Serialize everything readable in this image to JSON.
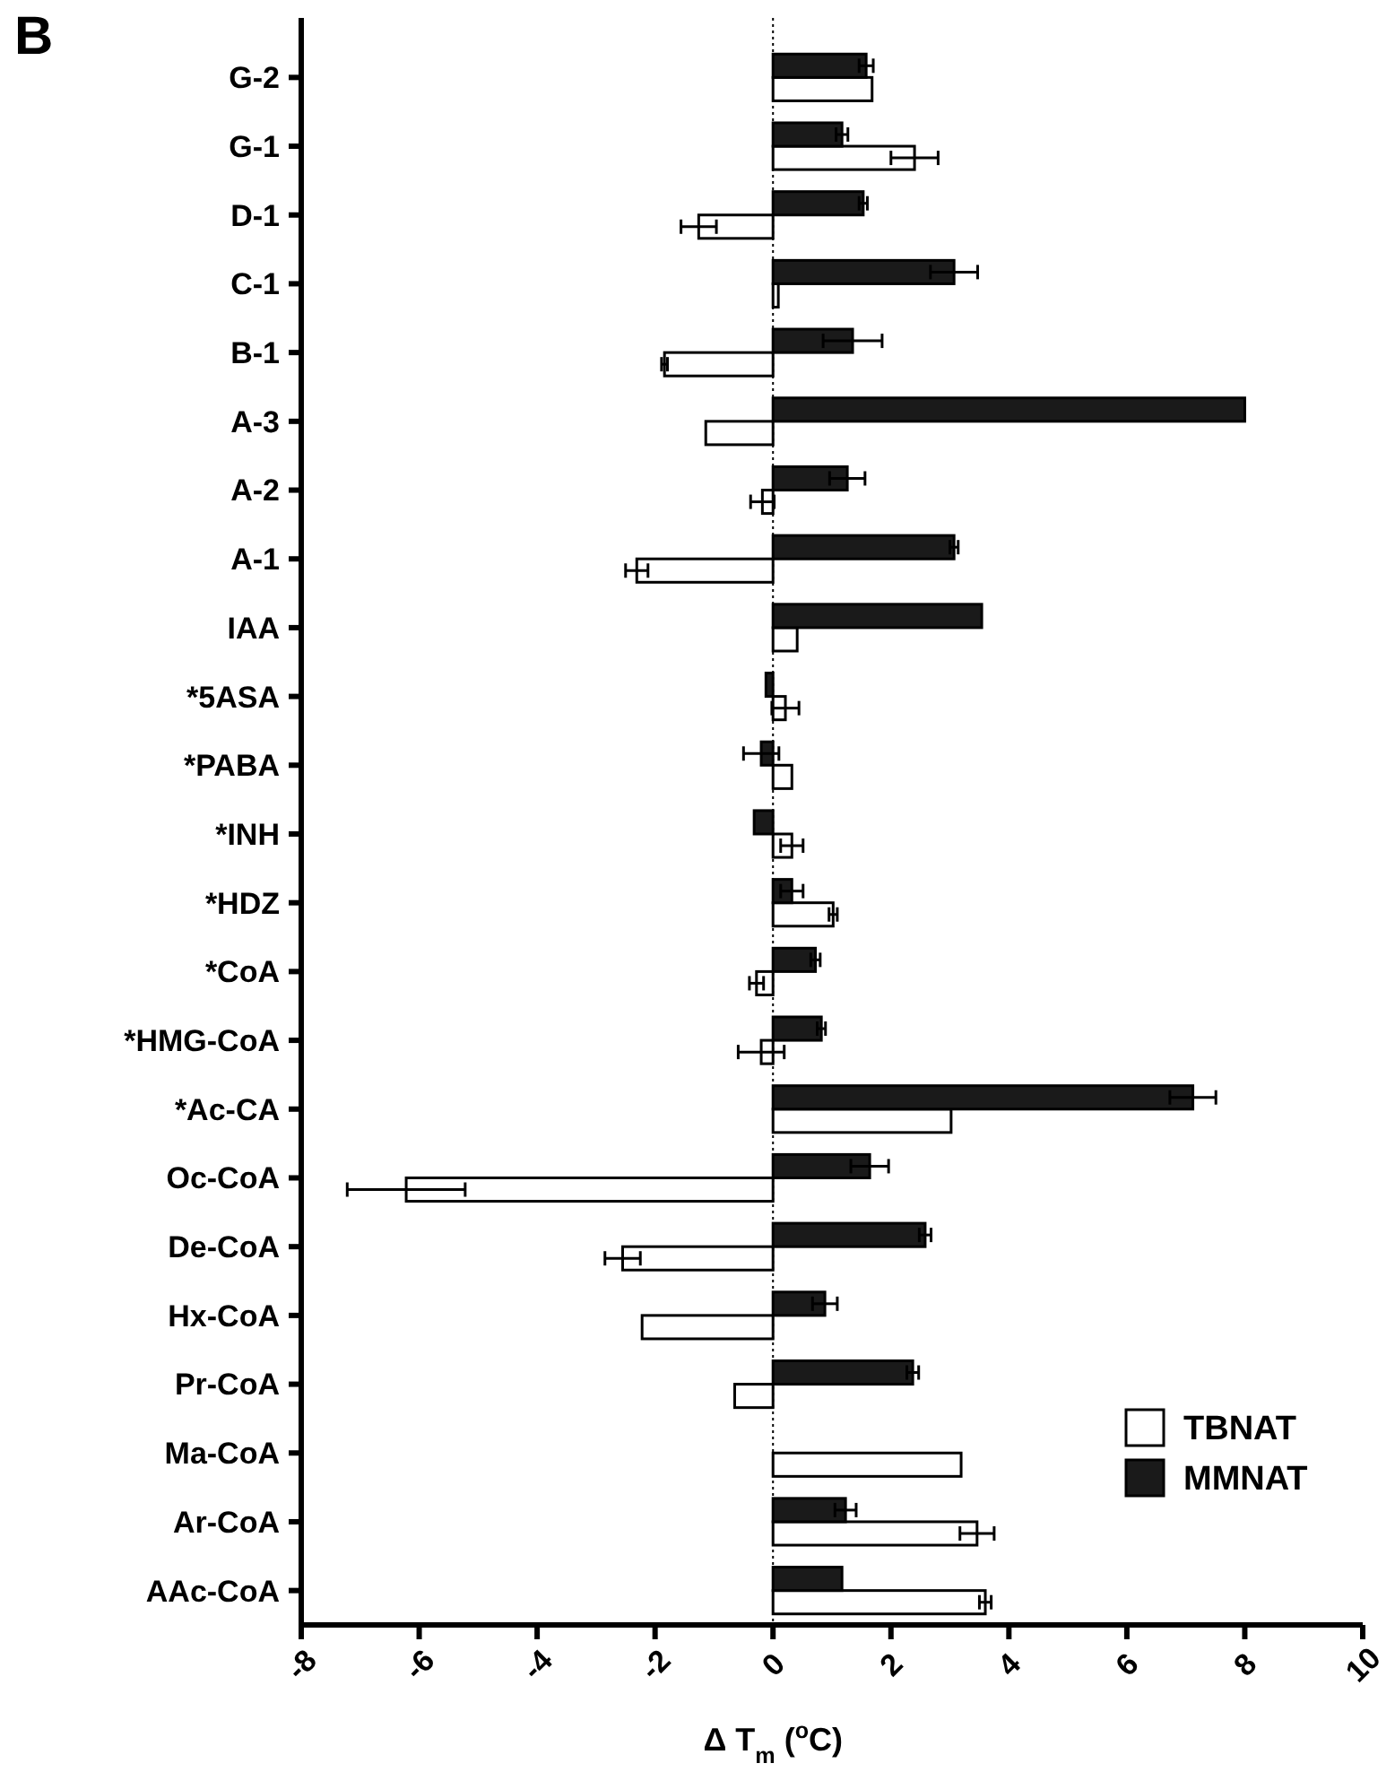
{
  "chart_data": {
    "type": "bar",
    "orientation": "horizontal",
    "title": "B",
    "xlabel": "Δ T$_{m}$ ($^{o}$C)",
    "categories": [
      "G-2",
      "G-1",
      "D-1",
      "C-1",
      "B-1",
      "A-3",
      "A-2",
      "A-1",
      "IAA",
      "*5ASA",
      "*PABA",
      "*INH",
      "*HDZ",
      "*CoA",
      "*HMG-CoA",
      "*Ac-CA",
      "Oc-CoA",
      "De-CoA",
      "Hx-CoA",
      "Pr-CoA",
      "Ma-CoA",
      "Ar-CoA",
      "AAc-CoA"
    ],
    "series": [
      {
        "name": "TBNAT",
        "color": "#ffffff",
        "values": [
          1.68,
          2.4,
          -1.26,
          0.09,
          -1.84,
          -1.14,
          -0.18,
          -2.31,
          0.41,
          0.21,
          0.32,
          0.32,
          1.02,
          -0.28,
          -0.2,
          3.02,
          -6.22,
          -2.55,
          -2.22,
          -0.65,
          3.19,
          3.46,
          3.6
        ],
        "errors": [
          null,
          0.4,
          0.3,
          null,
          0.05,
          null,
          0.2,
          0.19,
          null,
          0.23,
          null,
          0.19,
          0.07,
          0.12,
          0.39,
          null,
          1.0,
          0.3,
          null,
          null,
          null,
          0.29,
          0.1
        ]
      },
      {
        "name": "MMNAT",
        "color": "#1a1a1a",
        "values": [
          1.58,
          1.17,
          1.53,
          3.07,
          1.35,
          8.0,
          1.26,
          3.07,
          3.54,
          -0.12,
          -0.2,
          -0.32,
          0.32,
          0.72,
          0.82,
          7.12,
          1.64,
          2.58,
          0.88,
          2.37,
          null,
          1.23,
          1.17
        ],
        "errors": [
          0.12,
          0.1,
          0.07,
          0.4,
          0.5,
          null,
          0.3,
          0.07,
          null,
          null,
          0.3,
          null,
          0.19,
          0.08,
          0.07,
          0.39,
          0.32,
          0.1,
          0.21,
          0.1,
          null,
          0.18,
          null
        ]
      }
    ],
    "xlim": [
      -8,
      10
    ],
    "xticks": [
      -8,
      -6,
      -4,
      -2,
      0,
      2,
      4,
      6,
      8,
      10
    ],
    "ref_lines": [
      {
        "axis": "x",
        "value": 0,
        "line_style": "dotted",
        "color": "#000000"
      }
    ],
    "legend": "bottom right"
  }
}
